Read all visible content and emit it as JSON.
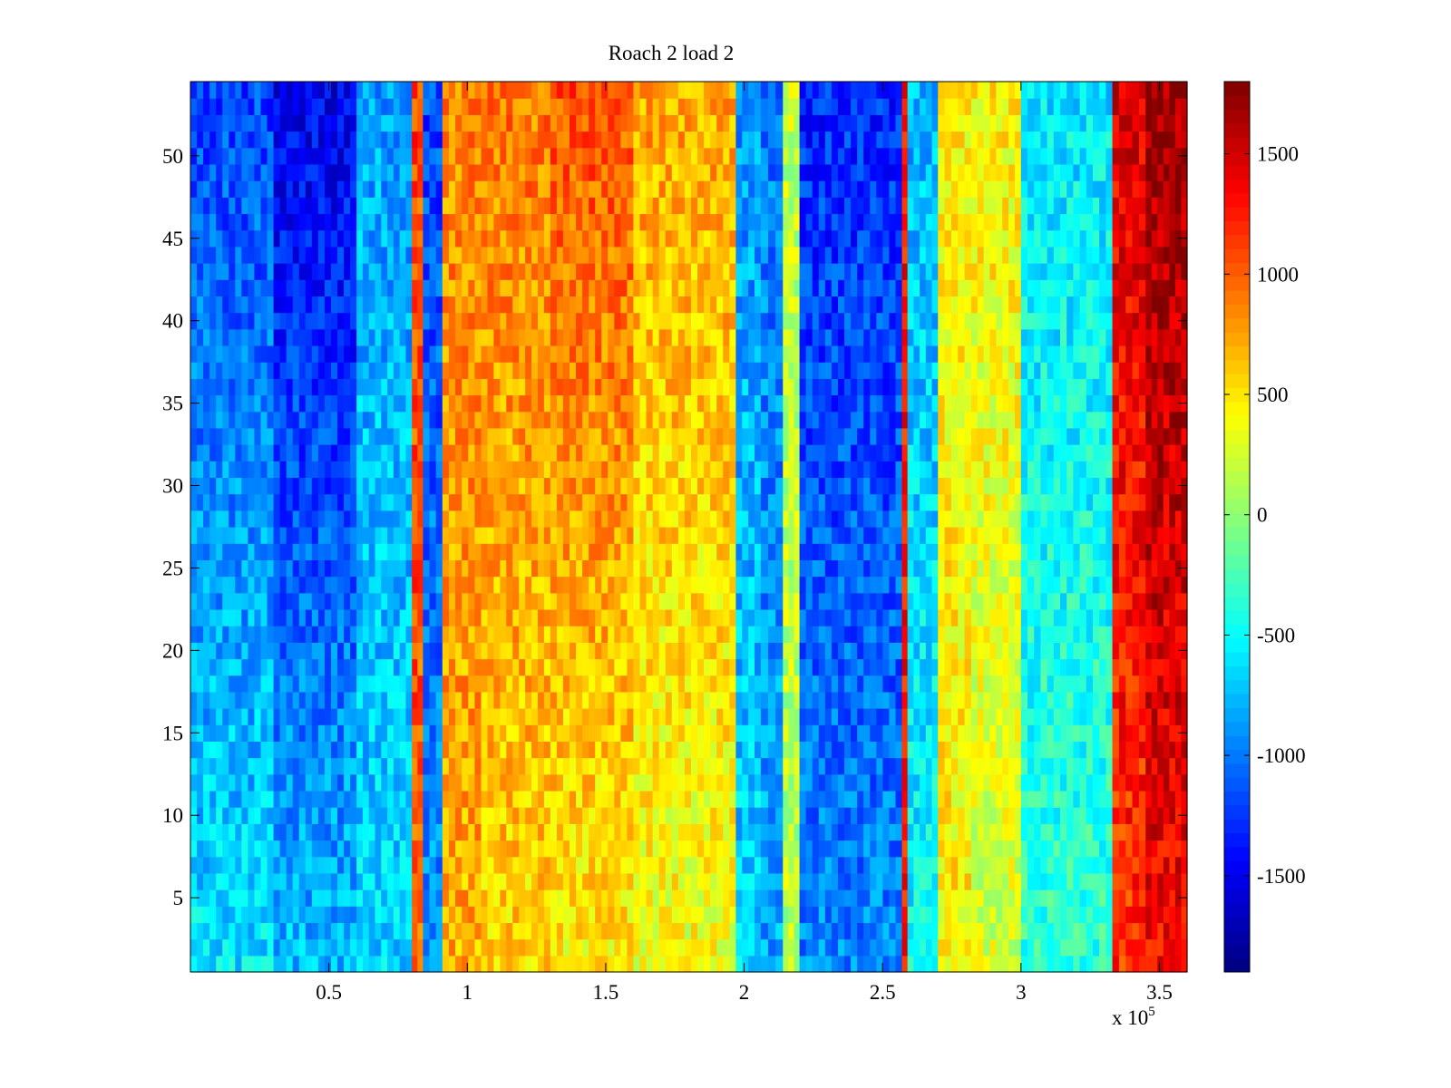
{
  "chart_data": {
    "type": "heatmap",
    "title": "Roach 2 load 2",
    "xlabel": "",
    "ylabel": "",
    "x_exponent_label": "x 10",
    "x_exponent": "5",
    "x_multiplier": 100000,
    "xlim": [
      0,
      360000
    ],
    "ylim": [
      0.5,
      54.5
    ],
    "rows": 54,
    "x_ticks": [
      {
        "value": 50000,
        "label": "0.5"
      },
      {
        "value": 100000,
        "label": "1"
      },
      {
        "value": 150000,
        "label": "1.5"
      },
      {
        "value": 200000,
        "label": "2"
      },
      {
        "value": 250000,
        "label": "2.5"
      },
      {
        "value": 300000,
        "label": "3"
      },
      {
        "value": 350000,
        "label": "3.5"
      }
    ],
    "y_ticks": [
      {
        "value": 5,
        "label": "5"
      },
      {
        "value": 10,
        "label": "10"
      },
      {
        "value": 15,
        "label": "15"
      },
      {
        "value": 20,
        "label": "20"
      },
      {
        "value": 25,
        "label": "25"
      },
      {
        "value": 30,
        "label": "30"
      },
      {
        "value": 35,
        "label": "35"
      },
      {
        "value": 40,
        "label": "40"
      },
      {
        "value": 45,
        "label": "45"
      },
      {
        "value": 50,
        "label": "50"
      }
    ],
    "colorbar": {
      "colormap": "jet",
      "clim": [
        -1900,
        1800
      ],
      "ticks": [
        {
          "value": -1500,
          "label": "-1500"
        },
        {
          "value": -1000,
          "label": "-1000"
        },
        {
          "value": -500,
          "label": "-500"
        },
        {
          "value": 0,
          "label": "0"
        },
        {
          "value": 500,
          "label": "500"
        },
        {
          "value": 1000,
          "label": "1000"
        },
        {
          "value": 1500,
          "label": "1500"
        }
      ]
    },
    "column_bands": [
      {
        "x_start": 0,
        "x_end": 30000,
        "bottom_value": -600,
        "top_value": -1200
      },
      {
        "x_start": 30000,
        "x_end": 60000,
        "bottom_value": -750,
        "top_value": -1500
      },
      {
        "x_start": 60000,
        "x_end": 80000,
        "bottom_value": -650,
        "top_value": -850
      },
      {
        "x_start": 80000,
        "x_end": 84000,
        "bottom_value": 1000,
        "top_value": 1100
      },
      {
        "x_start": 84000,
        "x_end": 91000,
        "bottom_value": -900,
        "top_value": -1200
      },
      {
        "x_start": 91000,
        "x_end": 105000,
        "bottom_value": 700,
        "top_value": 850
      },
      {
        "x_start": 105000,
        "x_end": 130000,
        "bottom_value": 550,
        "top_value": 900
      },
      {
        "x_start": 130000,
        "x_end": 160000,
        "bottom_value": 450,
        "top_value": 1050
      },
      {
        "x_start": 160000,
        "x_end": 197000,
        "bottom_value": 350,
        "top_value": 750
      },
      {
        "x_start": 197000,
        "x_end": 206000,
        "bottom_value": -650,
        "top_value": -900
      },
      {
        "x_start": 206000,
        "x_end": 214000,
        "bottom_value": -850,
        "top_value": -1000
      },
      {
        "x_start": 214000,
        "x_end": 220000,
        "bottom_value": 150,
        "top_value": 200
      },
      {
        "x_start": 220000,
        "x_end": 257000,
        "bottom_value": -950,
        "top_value": -1300
      },
      {
        "x_start": 257000,
        "x_end": 259000,
        "bottom_value": 1300,
        "top_value": 1300
      },
      {
        "x_start": 259000,
        "x_end": 270000,
        "bottom_value": -500,
        "top_value": -800
      },
      {
        "x_start": 270000,
        "x_end": 282000,
        "bottom_value": 450,
        "top_value": 450
      },
      {
        "x_start": 282000,
        "x_end": 300000,
        "bottom_value": 250,
        "top_value": 450
      },
      {
        "x_start": 300000,
        "x_end": 333000,
        "bottom_value": -350,
        "top_value": -600
      },
      {
        "x_start": 333000,
        "x_end": 345000,
        "bottom_value": 1150,
        "top_value": 1450
      },
      {
        "x_start": 345000,
        "x_end": 360000,
        "bottom_value": 1350,
        "top_value": 1700
      }
    ],
    "grid": false
  }
}
